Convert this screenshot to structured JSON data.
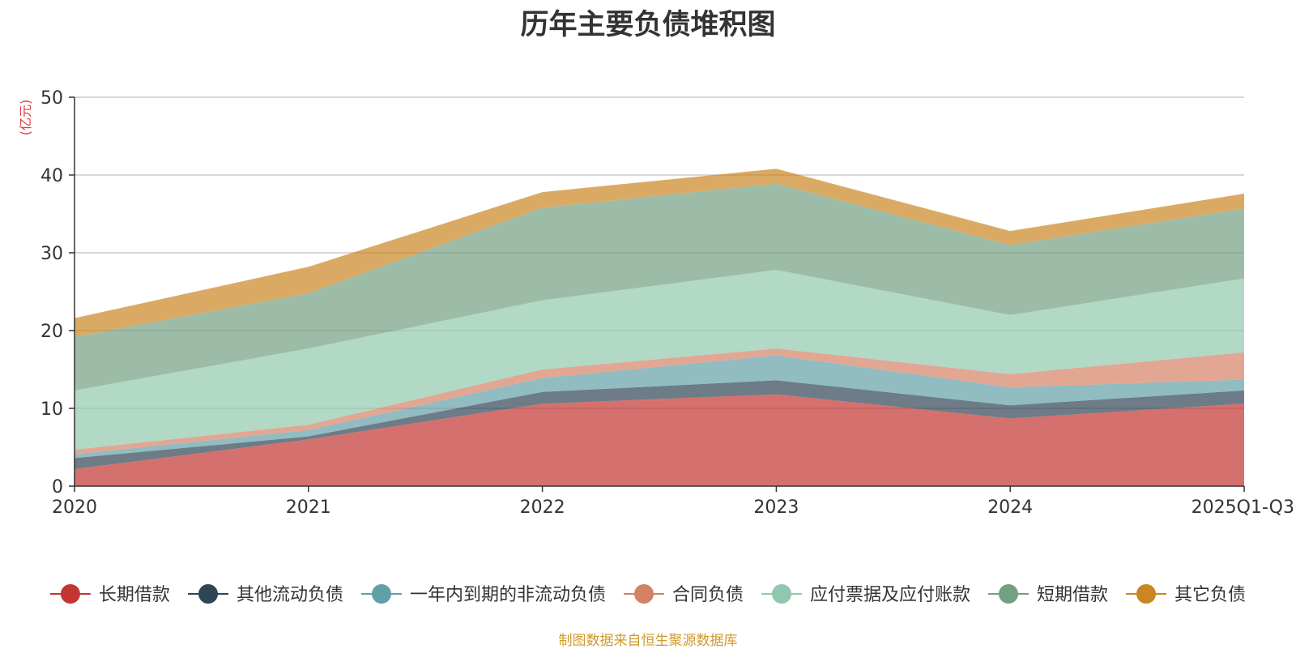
{
  "chart_data": {
    "type": "area",
    "stacked": true,
    "title": "历年主要负债堆积图",
    "ylabel": "(亿元)",
    "x": [
      "2020",
      "2021",
      "2022",
      "2023",
      "2024",
      "2025Q1-Q3"
    ],
    "ylim": [
      0,
      50
    ],
    "yticks": [
      0,
      10,
      20,
      30,
      40,
      50
    ],
    "grid": true,
    "legend_position": "bottom",
    "series": [
      {
        "name": "长期借款",
        "color": "#c23531",
        "values": [
          2.2,
          6.0,
          10.6,
          11.8,
          8.7,
          10.6
        ]
      },
      {
        "name": "其他流动负债",
        "color": "#2f4554",
        "values": [
          1.4,
          0.4,
          1.5,
          1.8,
          1.7,
          1.7
        ]
      },
      {
        "name": "一年内到期的非流动负债",
        "color": "#61a0a8",
        "values": [
          0.5,
          0.8,
          1.8,
          3.2,
          2.3,
          1.4
        ]
      },
      {
        "name": "合同负债",
        "color": "#d48265",
        "values": [
          0.6,
          0.7,
          1.1,
          0.9,
          1.7,
          3.5
        ]
      },
      {
        "name": "应付票据及应付账款",
        "color": "#91c7ae",
        "values": [
          7.6,
          9.8,
          8.9,
          10.1,
          7.6,
          9.5
        ]
      },
      {
        "name": "短期借款",
        "color": "#749f83",
        "values": [
          6.9,
          7.1,
          11.9,
          11.1,
          9.0,
          9.0
        ]
      },
      {
        "name": "其它负债",
        "color": "#ca8622",
        "values": [
          2.4,
          3.4,
          2.0,
          1.9,
          1.8,
          1.9
        ]
      }
    ]
  },
  "source_note": "制图数据来自恒生聚源数据库"
}
